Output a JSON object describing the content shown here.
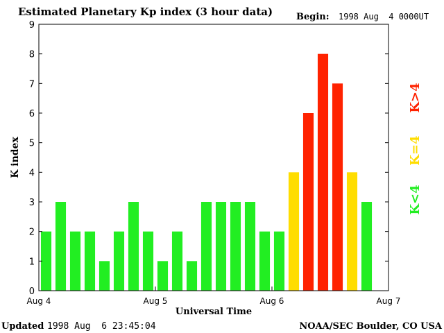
{
  "chart_data": {
    "type": "bar",
    "title": "Estimated Planetary Kp index (3 hour data)",
    "begin_label": "Begin:",
    "begin_value": "1998 Aug  4 0000UT",
    "xlabel": "Universal Time",
    "ylabel": "K index",
    "ylim": [
      0,
      9
    ],
    "y_ticks": [
      "0",
      "1",
      "2",
      "3",
      "4",
      "5",
      "6",
      "7",
      "8",
      "9"
    ],
    "x_ticks": [
      "Aug 4",
      "Aug 5",
      "Aug 6",
      "Aug 7"
    ],
    "x_range_hours": [
      0,
      72
    ],
    "bin_hours": 3,
    "values": [
      2,
      3,
      2,
      2,
      1,
      2,
      3,
      2,
      1,
      2,
      1,
      3,
      3,
      3,
      3,
      2,
      2,
      4,
      6,
      8,
      7,
      4,
      3
    ],
    "legend": [
      {
        "label": "K<4",
        "color": "#22ee22"
      },
      {
        "label": "K=4",
        "color": "#ffdd00"
      },
      {
        "label": "K>4",
        "color": "#ff2200"
      }
    ],
    "colors": {
      "low": "#22ee22",
      "equal": "#ffdd00",
      "high": "#ff2200",
      "axis": "#000000"
    }
  },
  "footer": {
    "updated_label": "Updated",
    "updated_value": "1998 Aug  6 23:45:04",
    "credit": "NOAA/SEC Boulder, CO USA"
  }
}
